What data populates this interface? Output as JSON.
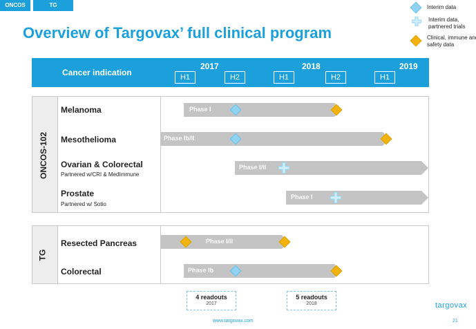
{
  "tabs": [
    "ONCOS",
    "TG"
  ],
  "title": "Overview of Targovax’ full clinical program",
  "legend": [
    {
      "label": "Interim data",
      "marker": "blue-diamond"
    },
    {
      "label": "Interim data, partnered trials",
      "marker": "light-blue-cross"
    },
    {
      "label": "Clinical, immune and safety data",
      "marker": "gold-diamond"
    }
  ],
  "header": {
    "label": "Cancer indication",
    "years": [
      "2017",
      "2018",
      "2019"
    ],
    "halves": [
      "H1",
      "H2",
      "H1",
      "H2",
      "H1"
    ]
  },
  "sections": {
    "oncos": {
      "label": "ONCOS-102",
      "rows": [
        {
          "name": "Melanoma",
          "sub": "",
          "phase": "Phase I"
        },
        {
          "name": "Mesothelioma",
          "sub": "",
          "phase": "Phase Ib/II"
        },
        {
          "name": "Ovarian & Colorectal",
          "sub": "Partnered w/CRI & MedImmune",
          "phase": "Phase I/II"
        },
        {
          "name": "Prostate",
          "sub": "Partnered w/ Sotio",
          "phase": "Phase I"
        }
      ]
    },
    "tg": {
      "label": "TG",
      "rows": [
        {
          "name": "Resected Pancreas",
          "sub": "",
          "phase": "Phase I/II"
        },
        {
          "name": "Colorectal",
          "sub": "",
          "phase": "Phase Ib"
        }
      ]
    }
  },
  "readouts": [
    {
      "label": "4 readouts",
      "year": "2017"
    },
    {
      "label": "5 readouts",
      "year": "2018"
    }
  ],
  "colors": {
    "accent": "#1ba0dc",
    "arrow": "#c4c4c4",
    "gold": "#f2b20f",
    "lightblue": "#8fd3f0"
  },
  "footer": {
    "url": "www.targovax.com",
    "page": "21",
    "logo": "targovax"
  }
}
